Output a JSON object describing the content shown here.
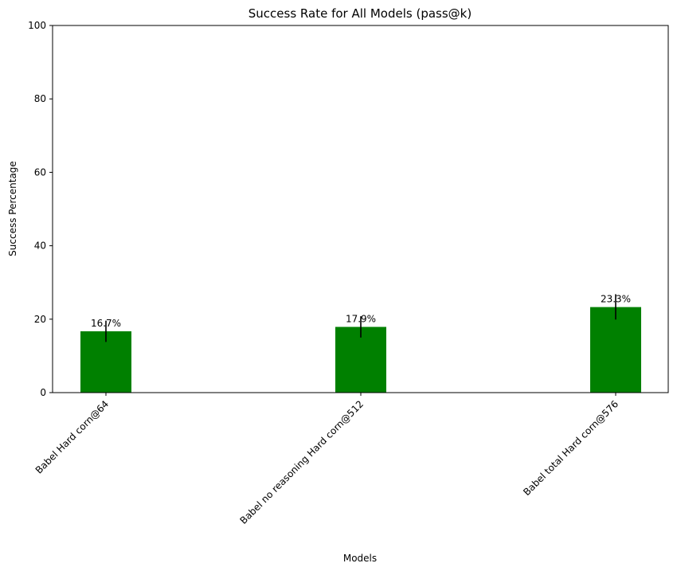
{
  "chart_data": {
    "type": "bar",
    "title": "Success Rate for All Models (pass@k)",
    "xlabel": "Models",
    "ylabel": "Success Percentage",
    "categories": [
      "Babel Hard corn@64",
      "Babel no reasoning Hard corn@512",
      "Babel total Hard corn@576"
    ],
    "values": [
      16.7,
      17.9,
      23.3
    ],
    "value_labels": [
      "16.7%",
      "17.9%",
      "23.3%"
    ],
    "error_low": [
      13.8,
      15.0,
      19.9
    ],
    "error_high": [
      19.6,
      20.8,
      26.8
    ],
    "ylim": [
      0,
      100
    ],
    "yticks": [
      0,
      20,
      40,
      60,
      80,
      100
    ],
    "bar_color": "#008000",
    "grid": false
  }
}
